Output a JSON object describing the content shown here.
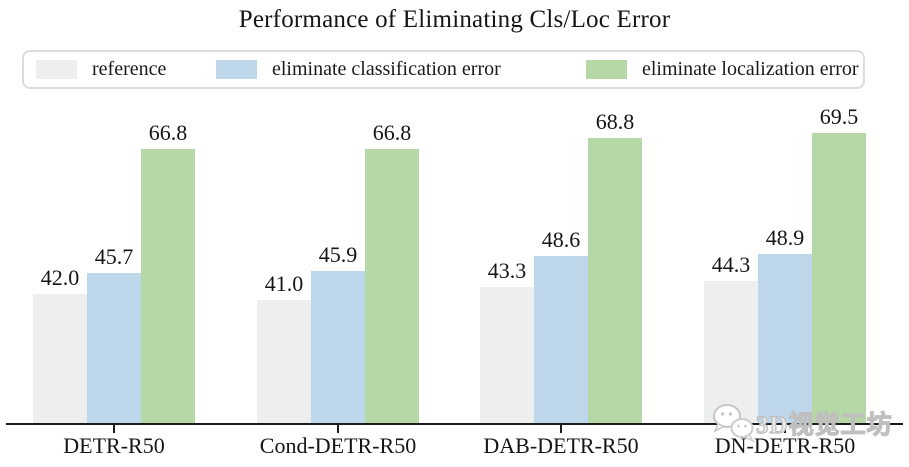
{
  "title": "Performance of Eliminating Cls/Loc Error",
  "watermark": {
    "text": "3D视觉工坊"
  },
  "chart_data": {
    "type": "bar",
    "title": "Performance of Eliminating Cls/Loc Error",
    "categories": [
      "DETR-R50",
      "Cond-DETR-R50",
      "DAB-DETR-R50",
      "DN-DETR-R50"
    ],
    "series": [
      {
        "name": "reference",
        "color": "#EDEEEE",
        "values": [
          42.0,
          41.0,
          43.3,
          44.3
        ]
      },
      {
        "name": "eliminate classification error",
        "color": "#BED7EB",
        "values": [
          45.7,
          45.9,
          48.6,
          48.9
        ]
      },
      {
        "name": "eliminate localization error",
        "color": "#B6D7A6",
        "values": [
          66.8,
          66.8,
          68.8,
          69.5
        ]
      }
    ],
    "bar_value_labels": true,
    "value_axis_min": 20,
    "value_axis_range": [
      20,
      75
    ],
    "grid": false,
    "legend_position": "top",
    "xlabel": "",
    "ylabel": ""
  }
}
